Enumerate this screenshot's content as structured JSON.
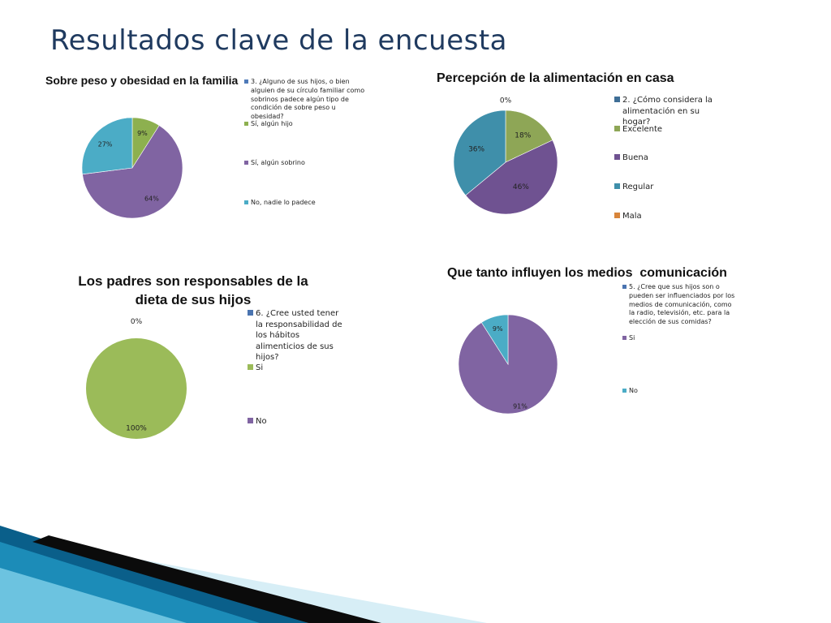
{
  "slide": {
    "title": "Resultados clave de la encuesta"
  },
  "chart_data": [
    {
      "id": "peso",
      "type": "pie",
      "title": "Sobre peso y obesidad en la familia",
      "legend_title": "3. ¿Alguno de sus hijos, o bien alguien de su círculo familiar como sobrinos padece algún tipo de condición de sobre peso u obesidad?",
      "legend_title_color": "#4f7ab8",
      "categories": [
        "Sí, algún hijo",
        "Sí, algún sobrino",
        "No, nadie lo padece"
      ],
      "values": [
        9,
        64,
        27
      ],
      "labels": [
        "9%",
        "64%",
        "27%"
      ],
      "colors": [
        "#8db04f",
        "#8064a2",
        "#4bacc6"
      ],
      "legend_position": "right"
    },
    {
      "id": "alimentacion",
      "type": "pie",
      "title": "Percepción de la alimentación en casa",
      "legend_title": "2. ¿Cómo considera la alimentación en su hogar?",
      "legend_title_color": "#3f6e96",
      "categories": [
        "Excelente",
        "Buena",
        "Regular",
        "Mala"
      ],
      "values": [
        18,
        46,
        36,
        0
      ],
      "labels": [
        "18%",
        "46%",
        "36%",
        "0%"
      ],
      "colors": [
        "#8ea656",
        "#6f5291",
        "#3f8faa",
        "#d8853b"
      ],
      "legend_position": "right"
    },
    {
      "id": "padres",
      "type": "pie",
      "title": "Los padres son responsables de la dieta de sus hijos",
      "title_lines": [
        "Los padres son responsables de la",
        "dieta de sus hijos"
      ],
      "legend_title": "6. ¿Cree usted tener la responsabilidad de los hábitos alimenticios de sus hijos?",
      "legend_title_color": "#4a74b0",
      "categories": [
        "Si",
        "No"
      ],
      "values": [
        100,
        0
      ],
      "labels": [
        "100%",
        "0%"
      ],
      "colors": [
        "#9bbb59",
        "#8064a2"
      ],
      "legend_position": "right"
    },
    {
      "id": "medios",
      "type": "pie",
      "title": "Que tanto influyen los medios  comunicación",
      "legend_title": "5. ¿Cree que sus hijos son o pueden ser influenciados por los medios de comunicación, como la radio, televisión, etc. para la elección de sus comidas?",
      "legend_title_color": "#4a74b0",
      "categories": [
        "Si",
        "No"
      ],
      "values": [
        91,
        9
      ],
      "labels": [
        "91%",
        "9%"
      ],
      "colors": [
        "#8064a2",
        "#4bacc6"
      ],
      "legend_position": "right"
    }
  ],
  "decoration": {
    "band_colors": [
      "#0a5f8a",
      "#1c8cb8",
      "#6cc3e0",
      "#0b0b0b",
      "#d7eef6"
    ]
  }
}
